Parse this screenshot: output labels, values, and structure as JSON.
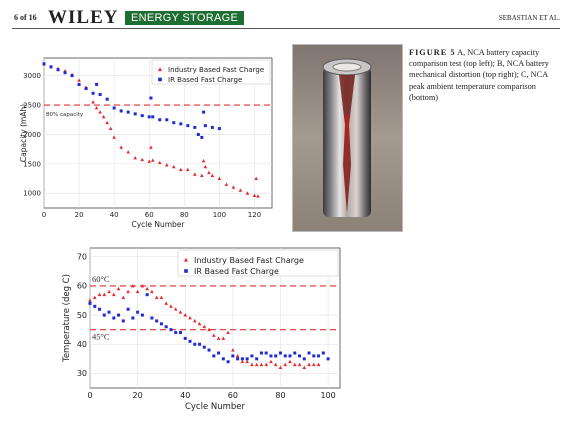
{
  "header": {
    "page_label": "6 of 16",
    "publisher": "WILEY",
    "journal": "ENERGY STORAGE",
    "author": "SEBASTIAN ET AL."
  },
  "caption": {
    "figure_label": "FIGURE 5",
    "text": "A, NCA battery capacity comparison test (top left); B, NCA battery mechanical distortion (top right); C, NCA peak ambient temperature comparison (bottom)"
  },
  "chart_data": [
    {
      "type": "scatter",
      "xlabel": "Cycle Number",
      "ylabel": "Capacity (mAh)",
      "xlim": [
        0,
        130
      ],
      "ylim": [
        750,
        3300
      ],
      "xticks": [
        "0",
        "20",
        "40",
        "60",
        "80",
        "100",
        "120"
      ],
      "yticks": [
        "1000",
        "1500",
        "2000",
        "2500",
        "3000"
      ],
      "threshold": {
        "y": 2500,
        "label": "80% capacity"
      },
      "legend": "top-right",
      "grid": true,
      "series": [
        {
          "name": "Industry Based Fast Charge",
          "color": "#e8282b",
          "marker": "triangle",
          "x": [
            0,
            4,
            8,
            12,
            16,
            20,
            24,
            28,
            30,
            32,
            34,
            36,
            38,
            40,
            44,
            48,
            52,
            56,
            60,
            61,
            62,
            66,
            70,
            74,
            78,
            82,
            86,
            90,
            91,
            92,
            94,
            96,
            100,
            104,
            108,
            112,
            116,
            120,
            121,
            122
          ],
          "y": [
            3200,
            3150,
            3120,
            3080,
            3020,
            2920,
            2800,
            2550,
            2450,
            2380,
            2300,
            2200,
            2100,
            1950,
            1780,
            1700,
            1600,
            1570,
            1540,
            1780,
            1560,
            1520,
            1480,
            1450,
            1400,
            1400,
            1320,
            1300,
            1550,
            1450,
            1350,
            1300,
            1250,
            1150,
            1100,
            1050,
            1000,
            960,
            1250,
            950
          ]
        },
        {
          "name": "IR Based Fast Charge",
          "color": "#1f2bd6",
          "marker": "square",
          "x": [
            0,
            4,
            8,
            12,
            16,
            20,
            24,
            28,
            30,
            32,
            36,
            40,
            44,
            48,
            52,
            56,
            60,
            61,
            62,
            66,
            70,
            74,
            78,
            82,
            86,
            88,
            90,
            91,
            92,
            96,
            100
          ],
          "y": [
            3200,
            3150,
            3100,
            3050,
            3000,
            2850,
            2780,
            2700,
            2850,
            2680,
            2600,
            2450,
            2400,
            2380,
            2350,
            2320,
            2300,
            2620,
            2300,
            2250,
            2250,
            2200,
            2180,
            2150,
            2120,
            2000,
            1950,
            2380,
            2150,
            2120,
            2100
          ]
        }
      ]
    },
    {
      "type": "scatter",
      "xlabel": "Cycle Number",
      "ylabel": "Temperature (deg C)",
      "xlim": [
        0,
        105
      ],
      "ylim": [
        25,
        73
      ],
      "xticks": [
        "0",
        "20",
        "40",
        "60",
        "80",
        "100"
      ],
      "yticks": [
        "30",
        "40",
        "50",
        "60",
        "70"
      ],
      "thresholds": [
        {
          "y": 60,
          "label": "60°C"
        },
        {
          "y": 45,
          "label": "45°C"
        }
      ],
      "legend": "top-right",
      "grid": true,
      "series": [
        {
          "name": "Industry Based Fast Charge",
          "color": "#e8282b",
          "marker": "triangle",
          "x": [
            0,
            2,
            4,
            6,
            8,
            10,
            12,
            14,
            16,
            18,
            20,
            22,
            24,
            26,
            28,
            30,
            32,
            34,
            36,
            38,
            40,
            42,
            44,
            46,
            48,
            50,
            52,
            54,
            56,
            58,
            60,
            62,
            64,
            66,
            68,
            70,
            72,
            74,
            76,
            78,
            80,
            82,
            84,
            86,
            88,
            90,
            92,
            94,
            96
          ],
          "y": [
            55,
            56,
            57,
            57,
            58,
            57,
            59,
            56,
            58,
            60,
            58,
            60,
            59,
            58,
            56,
            56,
            54,
            53,
            52,
            51,
            50,
            49,
            48,
            47,
            46,
            45,
            43,
            42,
            42,
            44,
            38,
            36,
            34,
            34,
            33,
            33,
            33,
            33,
            34,
            33,
            32,
            33,
            34,
            33,
            33,
            32,
            33,
            33,
            33
          ]
        },
        {
          "name": "IR Based Fast Charge",
          "color": "#1f2bd6",
          "marker": "square",
          "x": [
            0,
            2,
            4,
            6,
            8,
            10,
            12,
            14,
            16,
            18,
            20,
            22,
            24,
            26,
            28,
            30,
            32,
            34,
            36,
            38,
            40,
            42,
            44,
            46,
            48,
            50,
            52,
            54,
            56,
            58,
            60,
            62,
            64,
            66,
            68,
            70,
            72,
            74,
            76,
            78,
            80,
            82,
            84,
            86,
            88,
            90,
            92,
            94,
            96,
            98,
            100
          ],
          "y": [
            54,
            53,
            52,
            50,
            51,
            49,
            50,
            48,
            52,
            49,
            51,
            50,
            57,
            49,
            48,
            47,
            46,
            45,
            44,
            44,
            42,
            41,
            40,
            40,
            39,
            38,
            36,
            37,
            35,
            34,
            36,
            35,
            35,
            35,
            36,
            35,
            37,
            37,
            36,
            36,
            37,
            36,
            36,
            37,
            36,
            35,
            37,
            36,
            36,
            37,
            35
          ]
        }
      ]
    }
  ]
}
